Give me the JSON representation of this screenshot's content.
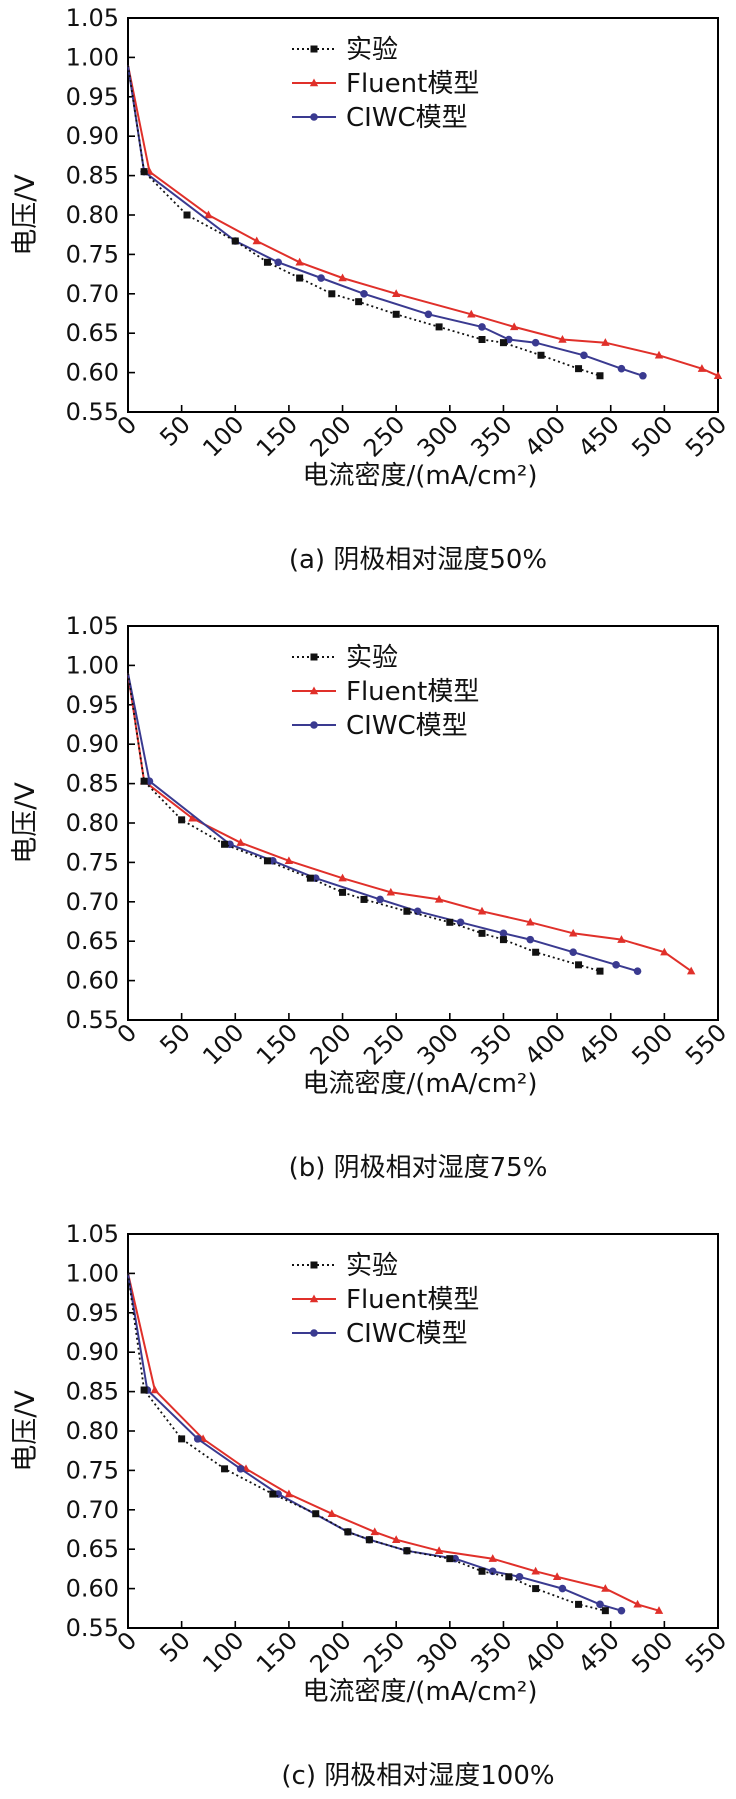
{
  "chart_data": [
    {
      "type": "line",
      "xlabel": "电流密度/(mA/cm²)",
      "ylabel": "电压/V",
      "caption": "(a) 阴极相对湿度50%",
      "xlim": [
        0,
        550
      ],
      "ylim": [
        0.55,
        1.05
      ],
      "xticks": [
        "0",
        "50",
        "100",
        "150",
        "200",
        "250",
        "300",
        "350",
        "400",
        "450",
        "500",
        "550"
      ],
      "yticks": [
        "0.55",
        "0.60",
        "0.65",
        "0.70",
        "0.75",
        "0.80",
        "0.85",
        "0.90",
        "0.95",
        "1.00",
        "1.05"
      ],
      "legend": "top-center",
      "grid": false,
      "series": [
        {
          "name": "实验",
          "color": "#111111",
          "x": [
            0,
            15,
            55,
            100,
            130,
            160,
            190,
            215,
            250,
            290,
            330,
            350,
            385,
            420,
            440
          ],
          "y": [
            0.99,
            0.855,
            0.8,
            0.767,
            0.74,
            0.72,
            0.7,
            0.69,
            0.674,
            0.658,
            0.642,
            0.638,
            0.622,
            0.605,
            0.596
          ]
        },
        {
          "name": "Fluent模型",
          "color": "#e0302a",
          "x": [
            0,
            20,
            75,
            120,
            160,
            200,
            250,
            320,
            360,
            405,
            445,
            495,
            535,
            550
          ],
          "y": [
            0.99,
            0.855,
            0.8,
            0.767,
            0.74,
            0.72,
            0.7,
            0.674,
            0.658,
            0.642,
            0.638,
            0.622,
            0.605,
            0.596
          ]
        },
        {
          "name": "CIWC模型",
          "color": "#3a3a90",
          "x": [
            0,
            15,
            100,
            140,
            180,
            220,
            280,
            330,
            355,
            380,
            425,
            460,
            480
          ],
          "y": [
            0.99,
            0.855,
            0.767,
            0.74,
            0.72,
            0.7,
            0.674,
            0.658,
            0.642,
            0.638,
            0.622,
            0.605,
            0.596
          ]
        }
      ]
    },
    {
      "type": "line",
      "xlabel": "电流密度/(mA/cm²)",
      "ylabel": "电压/V",
      "caption": "(b) 阴极相对湿度75%",
      "xlim": [
        0,
        550
      ],
      "ylim": [
        0.55,
        1.05
      ],
      "xticks": [
        "0",
        "50",
        "100",
        "150",
        "200",
        "250",
        "300",
        "350",
        "400",
        "450",
        "500",
        "550"
      ],
      "yticks": [
        "0.55",
        "0.60",
        "0.65",
        "0.70",
        "0.75",
        "0.80",
        "0.85",
        "0.90",
        "0.95",
        "1.00",
        "1.05"
      ],
      "legend": "top-center",
      "grid": false,
      "series": [
        {
          "name": "实验",
          "color": "#111111",
          "x": [
            0,
            15,
            50,
            90,
            130,
            170,
            200,
            220,
            260,
            300,
            330,
            350,
            380,
            420,
            440
          ],
          "y": [
            0.99,
            0.853,
            0.804,
            0.773,
            0.752,
            0.73,
            0.712,
            0.703,
            0.688,
            0.674,
            0.66,
            0.652,
            0.636,
            0.62,
            0.612
          ]
        },
        {
          "name": "Fluent模型",
          "color": "#e0302a",
          "x": [
            0,
            15,
            60,
            105,
            150,
            200,
            245,
            290,
            330,
            375,
            415,
            460,
            500,
            525
          ],
          "y": [
            0.99,
            0.853,
            0.806,
            0.775,
            0.752,
            0.73,
            0.712,
            0.703,
            0.688,
            0.674,
            0.66,
            0.652,
            0.636,
            0.612
          ]
        },
        {
          "name": "CIWC模型",
          "color": "#3a3a90",
          "x": [
            0,
            20,
            95,
            135,
            175,
            235,
            270,
            310,
            350,
            375,
            415,
            455,
            475
          ],
          "y": [
            0.99,
            0.853,
            0.773,
            0.752,
            0.73,
            0.703,
            0.688,
            0.674,
            0.66,
            0.652,
            0.636,
            0.62,
            0.612
          ]
        }
      ]
    },
    {
      "type": "line",
      "xlabel": "电流密度/(mA/cm²)",
      "ylabel": "电压/V",
      "caption": "(c) 阴极相对湿度100%",
      "xlim": [
        0,
        550
      ],
      "ylim": [
        0.55,
        1.05
      ],
      "xticks": [
        "0",
        "50",
        "100",
        "150",
        "200",
        "250",
        "300",
        "350",
        "400",
        "450",
        "500",
        "550"
      ],
      "yticks": [
        "0.55",
        "0.60",
        "0.65",
        "0.70",
        "0.75",
        "0.80",
        "0.85",
        "0.90",
        "0.95",
        "1.00",
        "1.05"
      ],
      "legend": "top-center",
      "grid": false,
      "series": [
        {
          "name": "实验",
          "color": "#111111",
          "x": [
            0,
            15,
            50,
            90,
            135,
            175,
            205,
            225,
            260,
            300,
            330,
            355,
            380,
            420,
            445
          ],
          "y": [
            1.0,
            0.852,
            0.79,
            0.752,
            0.72,
            0.695,
            0.672,
            0.662,
            0.648,
            0.638,
            0.622,
            0.615,
            0.6,
            0.58,
            0.572
          ]
        },
        {
          "name": "Fluent模型",
          "color": "#e0302a",
          "x": [
            0,
            25,
            70,
            110,
            150,
            190,
            230,
            250,
            290,
            340,
            380,
            400,
            445,
            475,
            495
          ],
          "y": [
            1.0,
            0.852,
            0.79,
            0.752,
            0.72,
            0.695,
            0.672,
            0.662,
            0.648,
            0.638,
            0.622,
            0.615,
            0.6,
            0.58,
            0.572
          ]
        },
        {
          "name": "CIWC模型",
          "color": "#3a3a90",
          "x": [
            0,
            18,
            65,
            105,
            140,
            205,
            225,
            260,
            305,
            340,
            365,
            405,
            440,
            460
          ],
          "y": [
            1.0,
            0.852,
            0.79,
            0.752,
            0.72,
            0.672,
            0.662,
            0.648,
            0.638,
            0.622,
            0.615,
            0.6,
            0.58,
            0.572
          ]
        }
      ]
    }
  ]
}
